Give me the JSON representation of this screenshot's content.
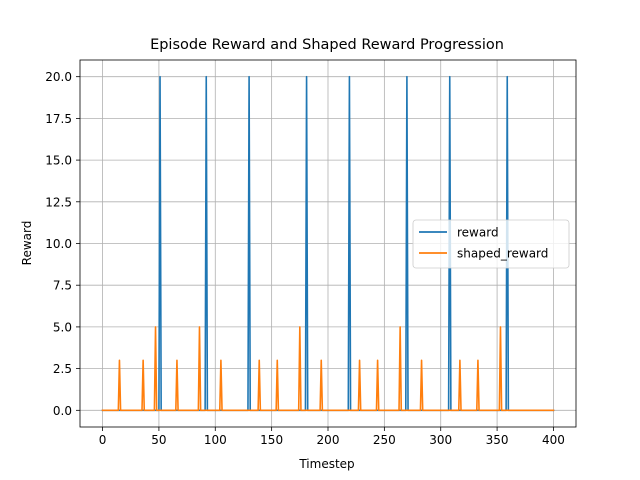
{
  "chart_data": {
    "type": "line",
    "title": "Episode Reward and Shaped Reward Progression",
    "xlabel": "Timestep",
    "ylabel": "Reward",
    "xlim": [
      -20,
      420
    ],
    "ylim": [
      -1,
      21
    ],
    "x_ticks": [
      0,
      50,
      100,
      150,
      200,
      250,
      300,
      350,
      400
    ],
    "x_tick_labels": [
      "0",
      "50",
      "100",
      "150",
      "200",
      "250",
      "300",
      "350",
      "400"
    ],
    "y_ticks": [
      0,
      2.5,
      5,
      7.5,
      10,
      12.5,
      15,
      17.5,
      20
    ],
    "y_tick_labels": [
      "0.0",
      "2.5",
      "5.0",
      "7.5",
      "10.0",
      "12.5",
      "15.0",
      "17.5",
      "20.0"
    ],
    "grid": true,
    "legend_position": "center-right",
    "series": [
      {
        "name": "reward",
        "color": "#1f77b4",
        "x": [
          0,
          50,
          51,
          52,
          91,
          92,
          93,
          129,
          130,
          131,
          180,
          181,
          182,
          218,
          219,
          220,
          269,
          270,
          271,
          307,
          308,
          309,
          358,
          359,
          360,
          400
        ],
        "y": [
          0,
          0,
          20,
          0,
          0,
          20,
          0,
          0,
          20,
          0,
          0,
          20,
          0,
          0,
          20,
          0,
          0,
          20,
          0,
          0,
          20,
          0,
          0,
          20,
          0,
          0
        ]
      },
      {
        "name": "shaped_reward",
        "color": "#ff7f0e",
        "x": [
          0,
          14,
          15,
          16,
          35,
          36,
          37,
          46,
          47,
          48,
          65,
          66,
          67,
          85,
          86,
          87,
          104,
          105,
          106,
          138,
          139,
          140,
          154,
          155,
          156,
          174,
          175,
          176,
          193,
          194,
          195,
          227,
          228,
          229,
          243,
          244,
          245,
          263,
          264,
          265,
          282,
          283,
          284,
          316,
          317,
          318,
          332,
          333,
          334,
          352,
          353,
          354,
          400
        ],
        "y": [
          0,
          0,
          3,
          0,
          0,
          3,
          0,
          0,
          5,
          0,
          0,
          3,
          0,
          0,
          5,
          0,
          0,
          3,
          0,
          0,
          3,
          0,
          0,
          3,
          0,
          0,
          5,
          0,
          0,
          3,
          0,
          0,
          3,
          0,
          0,
          3,
          0,
          0,
          5,
          0,
          0,
          3,
          0,
          0,
          3,
          0,
          0,
          3,
          0,
          0,
          5,
          0,
          0
        ]
      }
    ]
  }
}
